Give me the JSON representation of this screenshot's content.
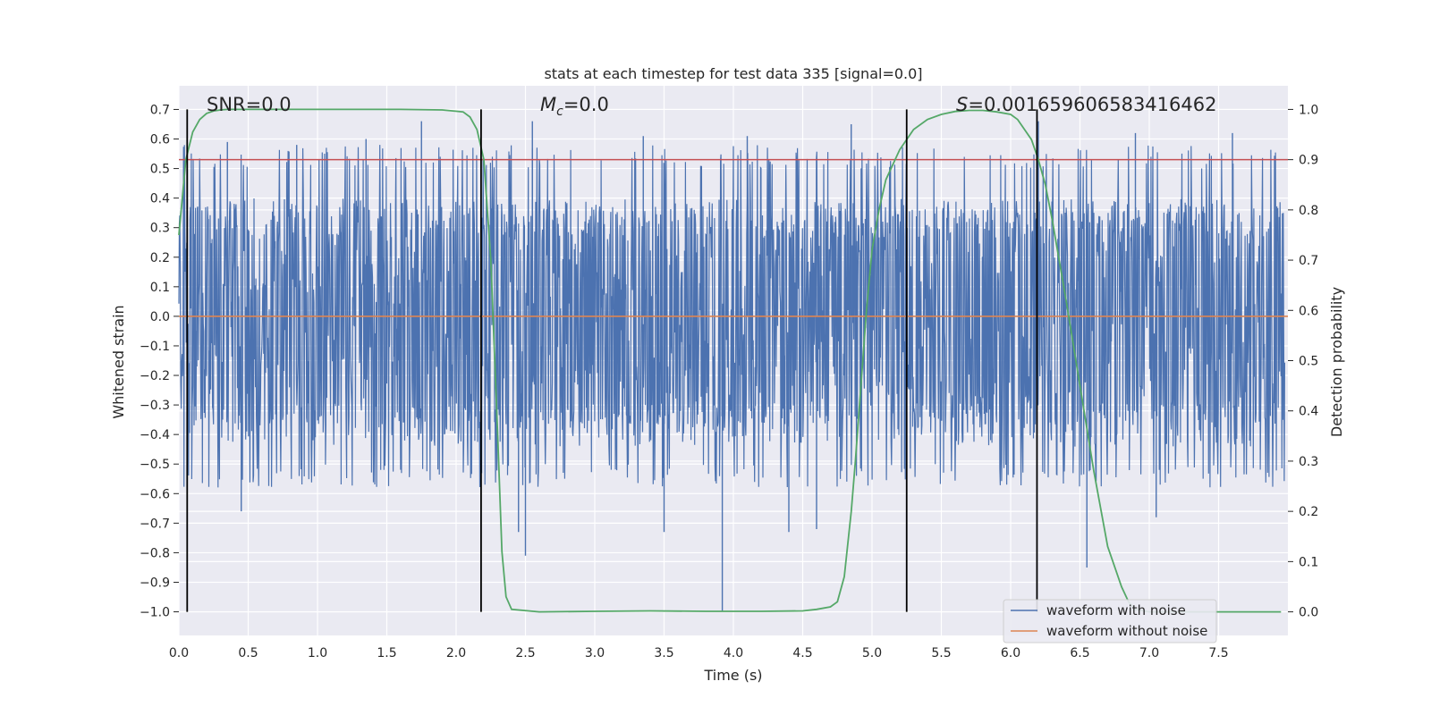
{
  "chart_data": {
    "type": "line",
    "title": "stats at each timestep for test data 335 [signal=0.0]",
    "xlabel": "Time (s)",
    "ylabel_left": "Whitened strain",
    "ylabel_right": "Detection probability",
    "xlim": [
      0.0,
      8.0
    ],
    "ylim_left": [
      -1.08,
      0.78
    ],
    "ylim_right": [
      -0.047,
      1.047
    ],
    "x_ticks": [
      0.0,
      0.5,
      1.0,
      1.5,
      2.0,
      2.5,
      3.0,
      3.5,
      4.0,
      4.5,
      5.0,
      5.5,
      6.0,
      6.5,
      7.0,
      7.5
    ],
    "x_tick_labels": [
      "0.0",
      "0.5",
      "1.0",
      "1.5",
      "2.0",
      "2.5",
      "3.0",
      "3.5",
      "4.0",
      "4.5",
      "5.0",
      "5.5",
      "6.0",
      "6.5",
      "7.0",
      "7.5"
    ],
    "y_left_ticks": [
      0.7,
      0.6,
      0.5,
      0.4,
      0.3,
      0.2,
      0.1,
      0.0,
      -0.1,
      -0.2,
      -0.3,
      -0.4,
      -0.5,
      -0.6,
      -0.7,
      -0.8,
      -0.9,
      -1.0
    ],
    "y_left_tick_labels": [
      "0.7",
      "0.6",
      "0.5",
      "0.4",
      "0.3",
      "0.2",
      "0.1",
      "0.0",
      "−0.1",
      "−0.2",
      "−0.3",
      "−0.4",
      "−0.5",
      "−0.6",
      "−0.7",
      "−0.8",
      "−0.9",
      "−1.0"
    ],
    "y_right_ticks": [
      1.0,
      0.9,
      0.8,
      0.7,
      0.6,
      0.5,
      0.4,
      0.3,
      0.2,
      0.1,
      0.0
    ],
    "y_right_tick_labels": [
      "1.0",
      "0.9",
      "0.8",
      "0.7",
      "0.6",
      "0.5",
      "0.4",
      "0.3",
      "0.2",
      "0.1",
      "0.0"
    ],
    "series": [
      {
        "name": "waveform with noise",
        "axis": "left",
        "color": "#4c72b0",
        "description": "dense whitened noise",
        "envelope_upper_typical": 0.38,
        "envelope_lower_typical": -0.42,
        "peaks_positive": [
          [
            0.35,
            0.59
          ],
          [
            0.85,
            0.58
          ],
          [
            1.35,
            0.6
          ],
          [
            1.75,
            0.66
          ],
          [
            2.55,
            0.66
          ],
          [
            3.35,
            0.61
          ],
          [
            4.1,
            0.61
          ],
          [
            4.85,
            0.65
          ],
          [
            5.25,
            0.62
          ],
          [
            6.2,
            0.66
          ],
          [
            6.9,
            0.62
          ],
          [
            7.6,
            0.62
          ]
        ],
        "peaks_negative": [
          [
            0.45,
            -0.66
          ],
          [
            2.45,
            -0.73
          ],
          [
            2.5,
            -0.81
          ],
          [
            3.5,
            -0.73
          ],
          [
            3.92,
            -1.0
          ],
          [
            4.4,
            -0.73
          ],
          [
            4.6,
            -0.72
          ],
          [
            6.55,
            -0.85
          ],
          [
            7.05,
            -0.68
          ]
        ]
      },
      {
        "name": "waveform without noise",
        "axis": "left",
        "color": "#dd8452",
        "x": [
          0.0,
          8.0
        ],
        "y": [
          0.0,
          0.0
        ]
      },
      {
        "name": "detection probability",
        "axis": "right",
        "color": "#55a868",
        "x": [
          0.0,
          0.05,
          0.1,
          0.15,
          0.2,
          0.25,
          0.3,
          0.35,
          0.4,
          0.5,
          0.7,
          1.0,
          1.3,
          1.6,
          1.9,
          2.05,
          2.1,
          2.15,
          2.2,
          2.25,
          2.3,
          2.33,
          2.36,
          2.4,
          2.6,
          3.0,
          3.4,
          3.8,
          4.2,
          4.5,
          4.6,
          4.7,
          4.75,
          4.8,
          4.85,
          4.88,
          4.92,
          4.96,
          5.0,
          5.05,
          5.1,
          5.2,
          5.3,
          5.4,
          5.5,
          5.6,
          5.7,
          5.8,
          5.9,
          6.0,
          6.05,
          6.1,
          6.15,
          6.2,
          6.25,
          6.3,
          6.4,
          6.5,
          6.6,
          6.7,
          6.8,
          6.85,
          6.9,
          7.0,
          7.5,
          7.95
        ],
        "y": [
          0.75,
          0.9,
          0.955,
          0.98,
          0.992,
          0.997,
          0.999,
          1.0,
          1.0,
          1.0,
          1.0,
          1.0,
          1.0,
          1.0,
          0.999,
          0.995,
          0.985,
          0.96,
          0.9,
          0.7,
          0.35,
          0.12,
          0.03,
          0.005,
          0.0,
          0.001,
          0.002,
          0.001,
          0.001,
          0.002,
          0.005,
          0.01,
          0.02,
          0.07,
          0.2,
          0.3,
          0.45,
          0.6,
          0.72,
          0.8,
          0.86,
          0.92,
          0.96,
          0.98,
          0.99,
          0.996,
          0.998,
          0.998,
          0.995,
          0.99,
          0.98,
          0.96,
          0.94,
          0.9,
          0.85,
          0.78,
          0.62,
          0.45,
          0.28,
          0.13,
          0.05,
          0.02,
          0.005,
          0.0,
          0.0,
          0.0
        ]
      }
    ],
    "threshold": {
      "axis": "right",
      "value": 0.9,
      "color": "#c44e52"
    },
    "vertical_lines": [
      0.06,
      2.18,
      5.25,
      6.19
    ],
    "annotations": [
      {
        "text": "SNR=0.0",
        "x": 0.2,
        "y_right": 1.0
      },
      {
        "text": "Mc=0.0",
        "x": 2.6,
        "y_right": 1.0
      },
      {
        "text": "S=0.001659606583416462",
        "x": 5.6,
        "y_right": 1.0
      }
    ],
    "annotation_text": {
      "snr": "SNR=0.0",
      "mc_symbol": "M",
      "mc_sub": "c",
      "mc_value": "=0.0",
      "s_symbol": "S",
      "s_value": "=0.001659606583416462"
    },
    "legend": {
      "placement": "lower-right",
      "entries": [
        "waveform with noise",
        "waveform without noise"
      ]
    },
    "grid": true
  }
}
